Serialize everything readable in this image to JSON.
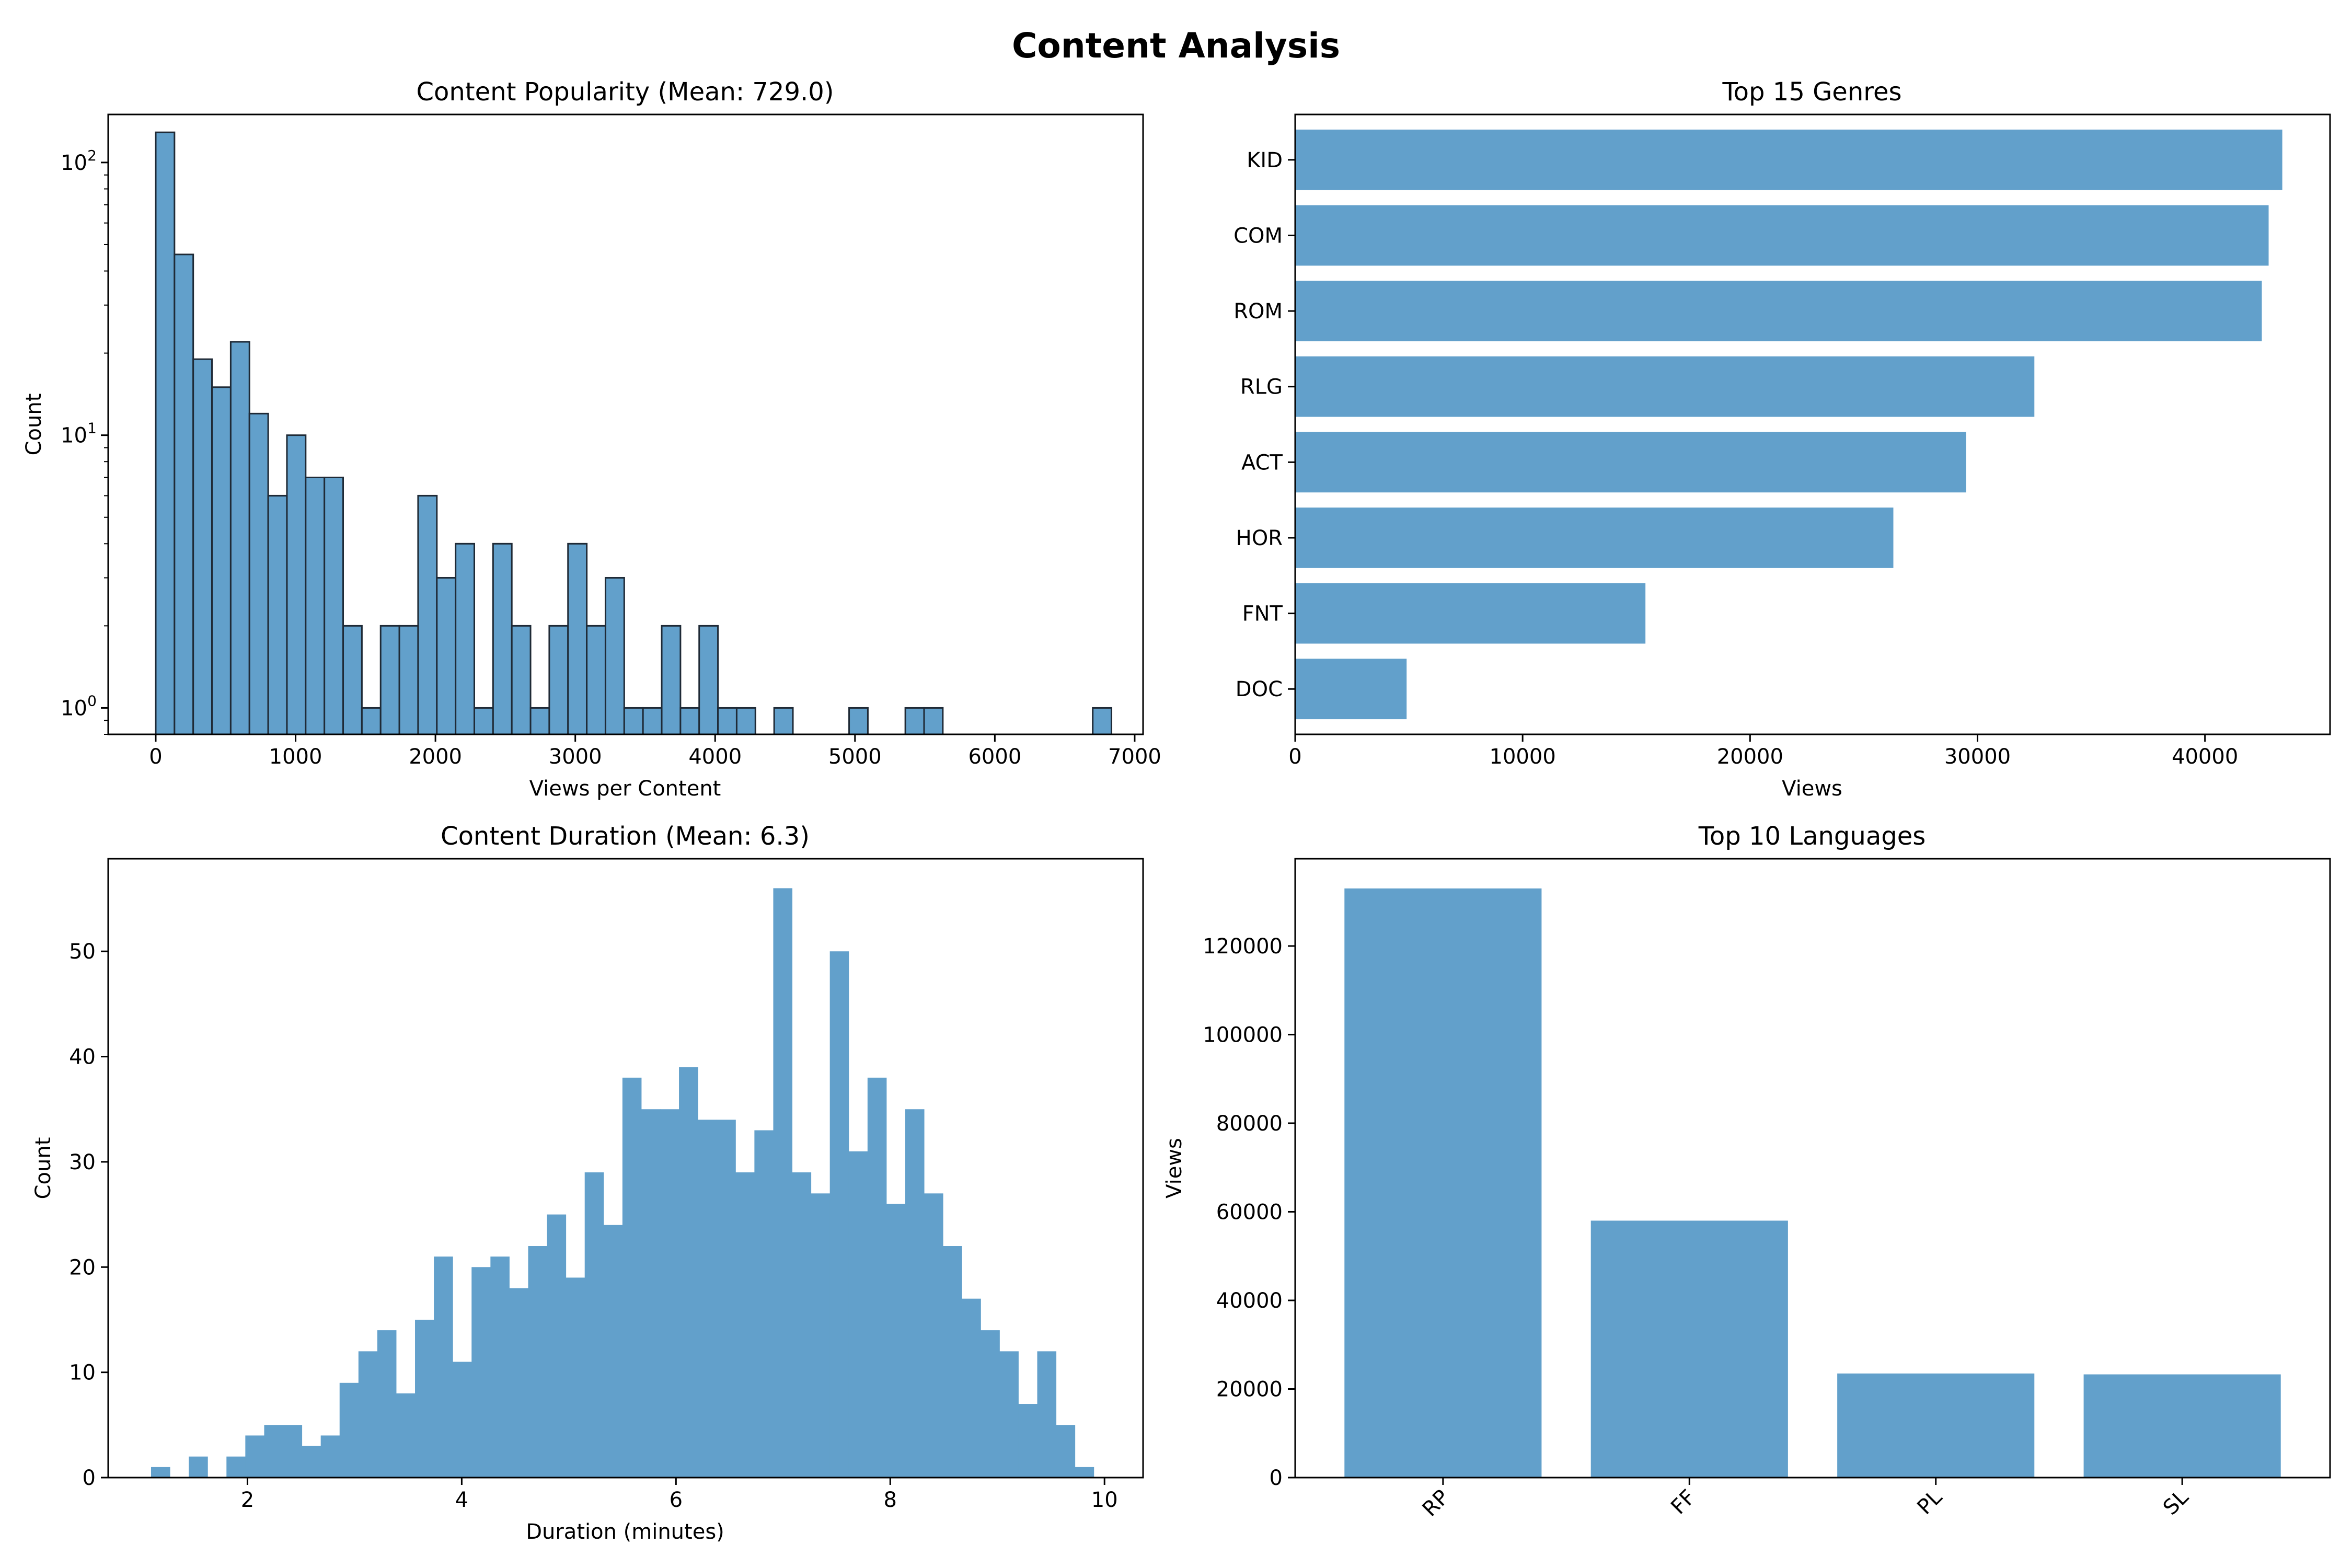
{
  "figure": {
    "suptitle": "Content Analysis",
    "bar_color": "#62a0cb",
    "edge_color": "#1f2a36"
  },
  "chart_data": [
    {
      "id": "popularity",
      "type": "bar",
      "title": "Content Popularity (Mean: 729.0)",
      "xlabel": "Views per Content",
      "ylabel": "Count",
      "yscale": "log",
      "xlim": [
        -340,
        7060
      ],
      "ylim": [
        0.8,
        150
      ],
      "bin_start": 0,
      "bin_width": 134,
      "values": [
        129,
        46,
        19,
        15,
        22,
        12,
        6,
        10,
        7,
        7,
        2,
        1,
        2,
        2,
        6,
        3,
        4,
        1,
        4,
        2,
        1,
        2,
        4,
        2,
        3,
        1,
        1,
        2,
        1,
        2,
        1,
        1,
        0,
        1,
        0,
        0,
        0,
        1,
        0,
        0,
        1,
        1,
        0,
        0,
        0,
        0,
        0,
        0,
        0,
        0,
        1
      ],
      "xticks": [
        0,
        1000,
        2000,
        3000,
        4000,
        5000,
        6000,
        7000
      ],
      "xtick_labels": [
        "0",
        "1000",
        "2000",
        "3000",
        "4000",
        "5000",
        "6000",
        "7000"
      ],
      "yticks": [
        1,
        10,
        100
      ],
      "ytick_labels": [
        {
          "base": "10",
          "exp": "0"
        },
        {
          "base": "10",
          "exp": "1"
        },
        {
          "base": "10",
          "exp": "2"
        }
      ]
    },
    {
      "id": "genres",
      "type": "barh",
      "title": "Top 15 Genres",
      "xlabel": "Views",
      "ylabel": "",
      "categories": [
        "KID",
        "COM",
        "ROM",
        "RLG",
        "ACT",
        "HOR",
        "FNT",
        "DOC"
      ],
      "values": [
        43400,
        42800,
        42500,
        32500,
        29500,
        26300,
        15400,
        4900
      ],
      "xlim": [
        0,
        45500
      ],
      "xticks": [
        0,
        10000,
        20000,
        30000,
        40000
      ],
      "xtick_labels": [
        "0",
        "10000",
        "20000",
        "30000",
        "40000"
      ]
    },
    {
      "id": "duration",
      "type": "bar",
      "title": "Content Duration (Mean: 6.3)",
      "xlabel": "Duration (minutes)",
      "ylabel": "Count",
      "xlim": [
        0.7,
        10.36
      ],
      "ylim": [
        0,
        58.8
      ],
      "bin_start": 1.1,
      "bin_width": 0.176,
      "values": [
        1,
        0,
        2,
        0,
        2,
        4,
        5,
        5,
        3,
        4,
        9,
        12,
        14,
        8,
        15,
        21,
        11,
        20,
        21,
        18,
        22,
        25,
        19,
        29,
        24,
        38,
        35,
        35,
        39,
        34,
        34,
        29,
        33,
        56,
        29,
        27,
        50,
        31,
        38,
        26,
        35,
        27,
        22,
        17,
        14,
        12,
        7,
        12,
        5,
        1
      ],
      "xticks": [
        2,
        4,
        6,
        8,
        10
      ],
      "xtick_labels": [
        "2",
        "4",
        "6",
        "8",
        "10"
      ],
      "yticks": [
        0,
        10,
        20,
        30,
        40,
        50
      ],
      "ytick_labels": [
        "0",
        "10",
        "20",
        "30",
        "40",
        "50"
      ]
    },
    {
      "id": "languages",
      "type": "bar",
      "title": "Top 10 Languages",
      "xlabel": "",
      "ylabel": "Views",
      "categories": [
        "RP",
        "FF",
        "PL",
        "SL"
      ],
      "values": [
        133000,
        58000,
        23500,
        23300
      ],
      "ylim": [
        0,
        139700
      ],
      "yticks": [
        0,
        20000,
        40000,
        60000,
        80000,
        100000,
        120000
      ],
      "ytick_labels": [
        "0",
        "20000",
        "40000",
        "60000",
        "80000",
        "100000",
        "120000"
      ]
    }
  ]
}
